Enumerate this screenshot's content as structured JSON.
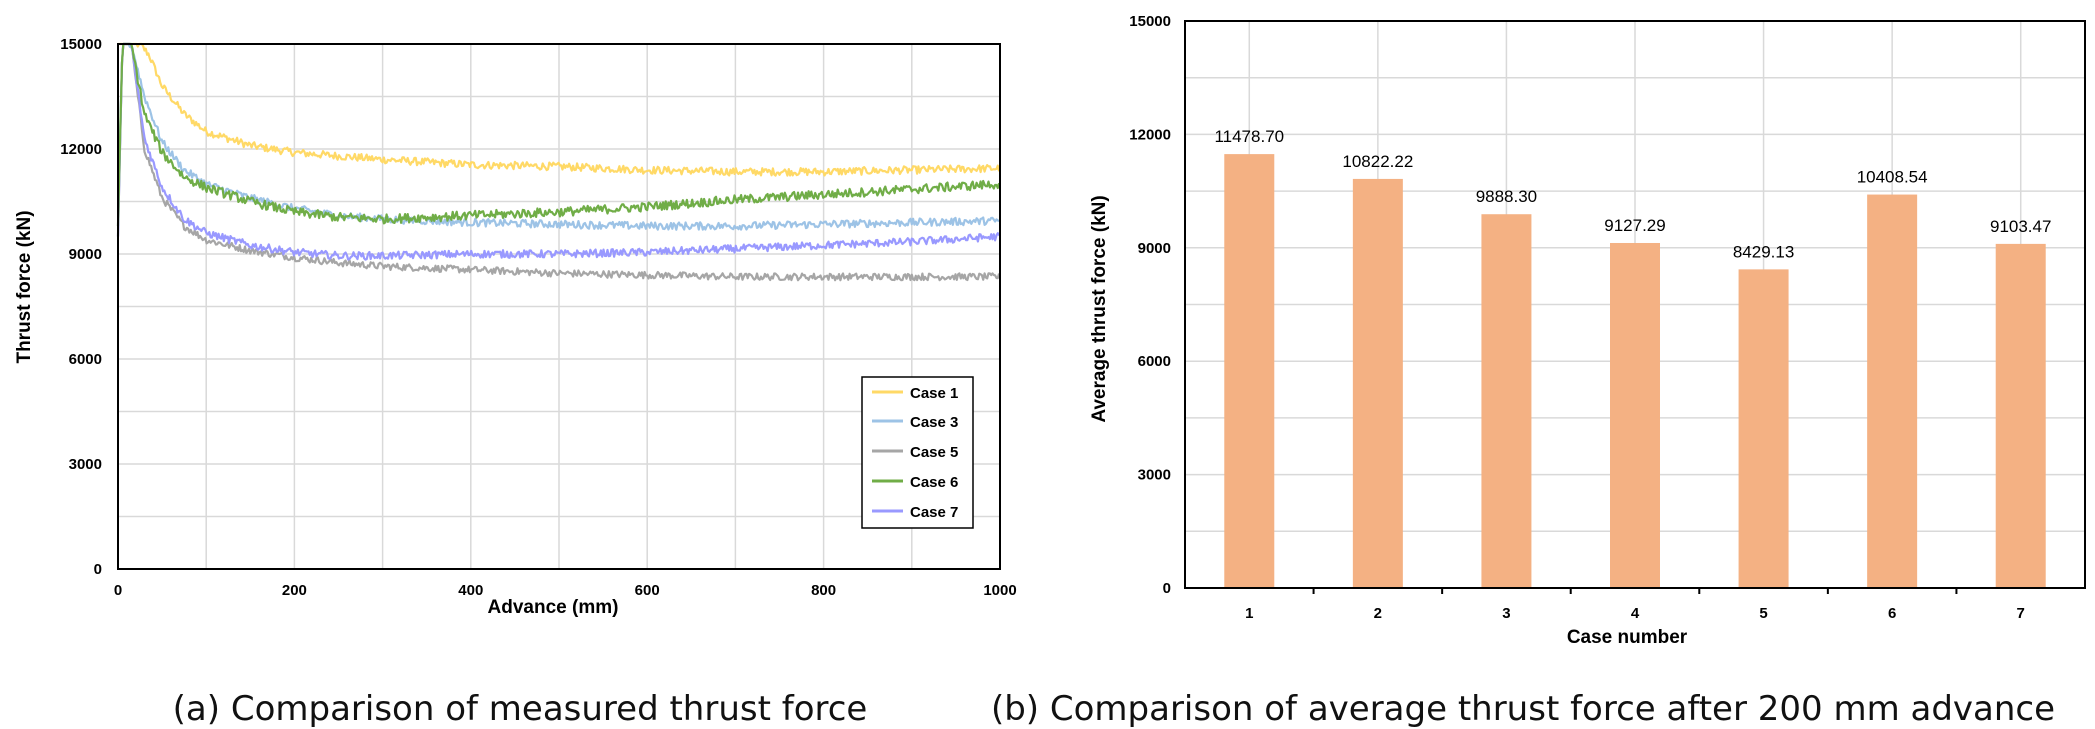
{
  "chart_data": [
    {
      "type": "line",
      "title": "",
      "caption": "(a) Comparison of measured thrust force",
      "xlabel": "Advance (mm)",
      "ylabel": "Thrust force (kN)",
      "xlim": [
        0,
        1000
      ],
      "ylim": [
        0,
        15000
      ],
      "xticks": [
        "0",
        "200",
        "400",
        "600",
        "800",
        "1000"
      ],
      "yticks": [
        "0",
        "3000",
        "6000",
        "9000",
        "12000",
        "15000"
      ],
      "grid": true,
      "legend_position": "bottom-right",
      "series": [
        {
          "name": "Case 1",
          "color": "#FFD966",
          "x": [
            0,
            10,
            25,
            35,
            50,
            75,
            100,
            150,
            200,
            300,
            400,
            500,
            600,
            700,
            800,
            900,
            1000
          ],
          "y": [
            15000,
            15000,
            15000,
            14700,
            13800,
            13000,
            12500,
            12100,
            11900,
            11700,
            11550,
            11500,
            11400,
            11350,
            11350,
            11400,
            11450
          ],
          "noise": 110
        },
        {
          "name": "Case 3",
          "color": "#9DC3E6",
          "x": [
            0,
            5,
            15,
            30,
            50,
            75,
            100,
            150,
            200,
            250,
            300,
            400,
            500,
            600,
            700,
            800,
            900,
            1000
          ],
          "y": [
            9800,
            15000,
            15000,
            13500,
            12200,
            11400,
            11000,
            10600,
            10300,
            10100,
            10000,
            9900,
            9850,
            9800,
            9800,
            9850,
            9900,
            9950
          ],
          "noise": 110
        },
        {
          "name": "Case 5",
          "color": "#A6A6A6",
          "x": [
            0,
            5,
            15,
            30,
            50,
            75,
            100,
            150,
            200,
            250,
            300,
            400,
            500,
            600,
            700,
            800,
            900,
            1000
          ],
          "y": [
            9500,
            15000,
            15000,
            12000,
            10600,
            9800,
            9400,
            9100,
            8900,
            8750,
            8650,
            8550,
            8450,
            8400,
            8350,
            8350,
            8350,
            8350
          ],
          "noise": 100
        },
        {
          "name": "Case 6",
          "color": "#70AD47",
          "x": [
            0,
            5,
            15,
            30,
            50,
            75,
            100,
            150,
            200,
            250,
            300,
            400,
            500,
            600,
            700,
            800,
            900,
            1000
          ],
          "y": [
            9800,
            15000,
            15000,
            13000,
            11900,
            11200,
            10900,
            10500,
            10200,
            10050,
            10000,
            10100,
            10200,
            10350,
            10550,
            10700,
            10850,
            11000
          ],
          "noise": 130
        },
        {
          "name": "Case 7",
          "color": "#9999FF",
          "x": [
            0,
            5,
            15,
            30,
            50,
            75,
            100,
            150,
            200,
            250,
            300,
            400,
            500,
            600,
            700,
            800,
            900,
            1000
          ],
          "y": [
            9500,
            15000,
            15000,
            12300,
            10900,
            10000,
            9600,
            9250,
            9050,
            8950,
            8950,
            9000,
            9000,
            9050,
            9150,
            9250,
            9350,
            9500
          ],
          "noise": 110
        }
      ]
    },
    {
      "type": "bar",
      "title": "",
      "caption": "(b) Comparison of average thrust force after 200 mm advance",
      "xlabel": "Case number",
      "ylabel": "Average thrust force (kN)",
      "ylim": [
        0,
        15000
      ],
      "yticks": [
        "0",
        "3000",
        "6000",
        "9000",
        "12000",
        "15000"
      ],
      "grid": true,
      "bar_color": "#F4B183",
      "categories": [
        "1",
        "2",
        "3",
        "4",
        "5",
        "6",
        "7"
      ],
      "values": [
        11478.7,
        10822.22,
        9888.3,
        9127.29,
        8429.13,
        10408.54,
        9103.47
      ],
      "data_labels": [
        "11478.70",
        "10822.22",
        "9888.30",
        "9127.29",
        "8429.13",
        "10408.54",
        "9103.47"
      ]
    }
  ]
}
